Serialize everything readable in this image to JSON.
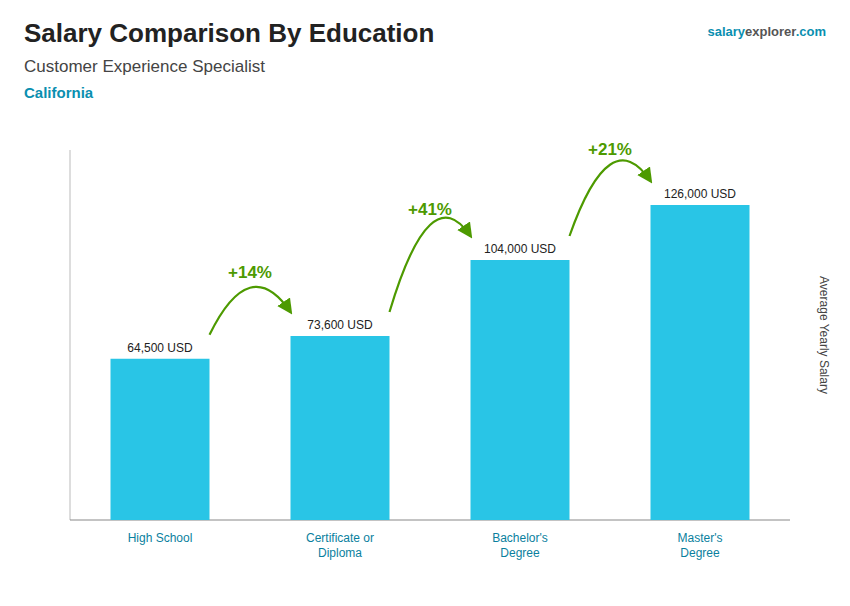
{
  "chart_data": {
    "type": "bar",
    "title": "Salary Comparison By Education",
    "subtitle": "Customer Experience Specialist",
    "location": "California",
    "watermark": [
      "salary",
      "explorer",
      ".com"
    ],
    "ylabel": "Average Yearly Salary",
    "categories": [
      "High School",
      "Certificate or\nDiploma",
      "Bachelor's\nDegree",
      "Master's\nDegree"
    ],
    "values": [
      64500,
      73600,
      104000,
      126000
    ],
    "value_labels": [
      "64,500 USD",
      "73,600 USD",
      "104,000 USD",
      "126,000 USD"
    ],
    "data_labels": true,
    "annotations": [
      "+14%",
      "+41%",
      "+21%"
    ],
    "color": "#29c5e6",
    "ylim": [
      0,
      148000
    ],
    "tick_labels": "x",
    "grid": false
  }
}
